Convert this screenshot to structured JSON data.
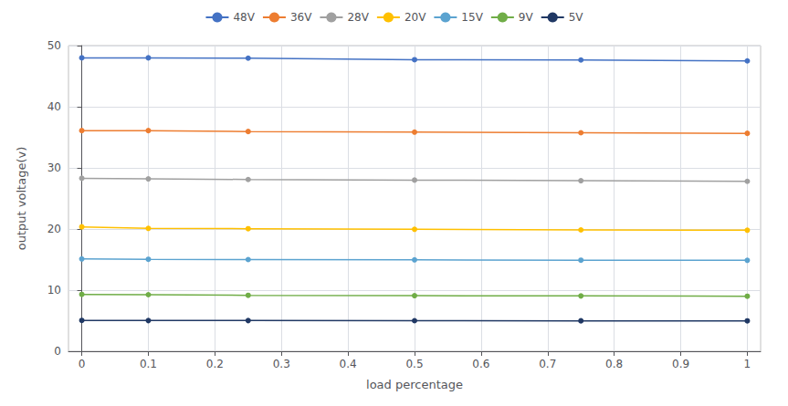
{
  "chart_data": {
    "type": "line",
    "xlabel": "load percentage",
    "ylabel": "output voltage(v)",
    "x": [
      0,
      0.1,
      0.25,
      0.5,
      0.75,
      1.0
    ],
    "series": [
      {
        "name": "48V",
        "color": "#4472c4",
        "values": [
          48.0,
          48.0,
          47.95,
          47.7,
          47.65,
          47.5
        ]
      },
      {
        "name": "36V",
        "color": "#ed7d31",
        "values": [
          36.1,
          36.1,
          35.95,
          35.85,
          35.75,
          35.65
        ]
      },
      {
        "name": "28V",
        "color": "#a0a0a0",
        "values": [
          28.3,
          28.2,
          28.1,
          28.0,
          27.9,
          27.8
        ]
      },
      {
        "name": "20V",
        "color": "#ffc000",
        "values": [
          20.35,
          20.1,
          20.05,
          19.95,
          19.85,
          19.8
        ]
      },
      {
        "name": "15V",
        "color": "#5ba3d0",
        "values": [
          15.1,
          15.05,
          15.0,
          14.95,
          14.9,
          14.88
        ]
      },
      {
        "name": "9V",
        "color": "#70ad47",
        "values": [
          9.3,
          9.25,
          9.15,
          9.1,
          9.05,
          9.0
        ]
      },
      {
        "name": "5V",
        "color": "#203864",
        "values": [
          5.05,
          5.02,
          5.02,
          5.0,
          4.98,
          4.97
        ]
      }
    ],
    "xlim": [
      -0.02,
      1.02
    ],
    "xticks": [
      0,
      0.1,
      0.2,
      0.3,
      0.4,
      0.5,
      0.6,
      0.7,
      0.8,
      0.9,
      1
    ],
    "ylim": [
      0,
      50
    ],
    "yticks": [
      0,
      10,
      20,
      30,
      40,
      50
    ],
    "grid": true,
    "legend": "top",
    "marker": "circle"
  }
}
